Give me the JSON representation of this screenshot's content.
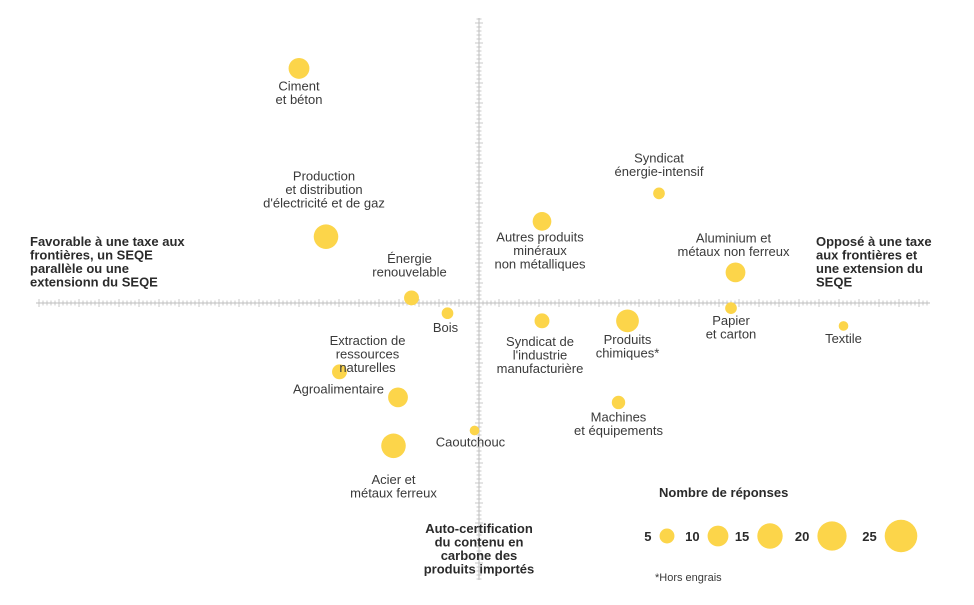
{
  "colors": {
    "bubble": "#FCD54A",
    "axis": "#bdbdbd",
    "text": "#3a3a3a"
  },
  "chart_data": {
    "type": "scatter",
    "title": "",
    "axes": {
      "left_label": "Favorable à une taxe aux frontières, un SEQE parallèle ou une extensionn du SEQE",
      "right_label": "Opposé à une taxe aux frontières et une extension du SEQE",
      "bottom_label": "Auto-certification du contenu en carbone des produits importés",
      "xlim": [
        -1,
        1
      ],
      "ylim": [
        -1,
        1
      ],
      "ticks": "dense minor ticks on both axes",
      "grid": false
    },
    "size_legend": {
      "title": "Nombre de réponses",
      "values": [
        5,
        10,
        15,
        20,
        25
      ]
    },
    "footnote": "*Hors engrais",
    "points": [
      {
        "label": "Ciment\net béton",
        "x": -0.4,
        "y": 0.92,
        "size": 10
      },
      {
        "label": "Production\net distribution\nd'électricité et de gaz",
        "x": -0.34,
        "y": 0.26,
        "size": 14
      },
      {
        "label": "Énergie\nrenouvelable",
        "x": -0.15,
        "y": 0.02,
        "size": 5
      },
      {
        "label": "Bois",
        "x": -0.07,
        "y": -0.04,
        "size": 3
      },
      {
        "label": "Extraction de\nressources\nnaturelles",
        "x": -0.31,
        "y": -0.27,
        "size": 5
      },
      {
        "label": "Agroalimentaire",
        "x": -0.18,
        "y": -0.37,
        "size": 9
      },
      {
        "label": "Acier et\nmétaux ferreux",
        "x": -0.19,
        "y": -0.56,
        "size": 14
      },
      {
        "label": "Caoutchouc",
        "x": -0.01,
        "y": -0.5,
        "size": 2
      },
      {
        "label": "Autres produits\nminéraux\nnon métalliques",
        "x": 0.14,
        "y": 0.32,
        "size": 8
      },
      {
        "label": "Syndicat de\nl'industrie\nmanufacturière",
        "x": 0.14,
        "y": -0.07,
        "size": 5
      },
      {
        "label": "Produits\nchimiques*",
        "x": 0.33,
        "y": -0.07,
        "size": 12
      },
      {
        "label": "Machines\net équipements",
        "x": 0.31,
        "y": -0.39,
        "size": 4
      },
      {
        "label": "Syndicat\nénergie-intensif",
        "x": 0.4,
        "y": 0.43,
        "size": 3
      },
      {
        "label": "Aluminium et\nmétaux non ferreux",
        "x": 0.57,
        "y": 0.12,
        "size": 9
      },
      {
        "label": "Papier\net carton",
        "x": 0.56,
        "y": -0.02,
        "size": 3
      },
      {
        "label": "Textile",
        "x": 0.81,
        "y": -0.09,
        "size": 2
      }
    ]
  }
}
